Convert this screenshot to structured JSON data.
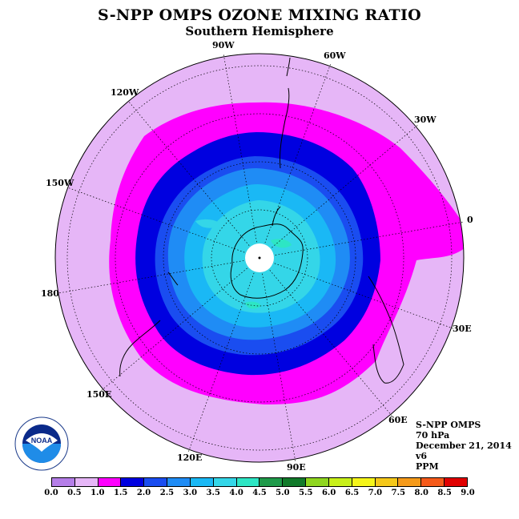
{
  "title": "S-NPP OMPS OZONE MIXING RATIO",
  "subtitle": "Southern Hemisphere",
  "longitude_labels": [
    "90W",
    "60W",
    "30W",
    "0",
    "120W",
    "150W",
    "180",
    "30E",
    "150E",
    "60E",
    "120E",
    "90E"
  ],
  "info": {
    "instrument": "S-NPP OMPS",
    "pressure": "70 hPa",
    "date": "December 21, 2014",
    "version": "v6",
    "units": "PPM"
  },
  "logo": {
    "text": "NOAA",
    "icon": "noaa-logo"
  },
  "colorbar": {
    "ticks": [
      "0.0",
      "0.5",
      "1.0",
      "1.5",
      "2.0",
      "2.5",
      "3.0",
      "3.5",
      "4.0",
      "4.5",
      "5.0",
      "5.5",
      "6.0",
      "6.5",
      "7.0",
      "7.5",
      "8.0",
      "8.5",
      "9.0"
    ],
    "colors": [
      "#b57ee8",
      "#e6b6f7",
      "#ff00ff",
      "#0000e0",
      "#1a4df0",
      "#1f8cf5",
      "#1ab8f5",
      "#34d6e8",
      "#2de6c4",
      "#1f9a4a",
      "#117a2a",
      "#8fd61f",
      "#c8f01a",
      "#f5f51a",
      "#f5c81a",
      "#f59a1a",
      "#f55a1a",
      "#e00000",
      "#8b5a2b"
    ]
  },
  "map_colors": {
    "background_band": "#e6b6f7",
    "band_1_0": "#ff00ff",
    "band_1_5": "#0000e0",
    "band_2_0": "#1a4df0",
    "band_2_5": "#1f8cf5",
    "band_3_0": "#1ab8f5",
    "band_3_5": "#34d6e8",
    "band_4_0": "#2de6c4"
  }
}
